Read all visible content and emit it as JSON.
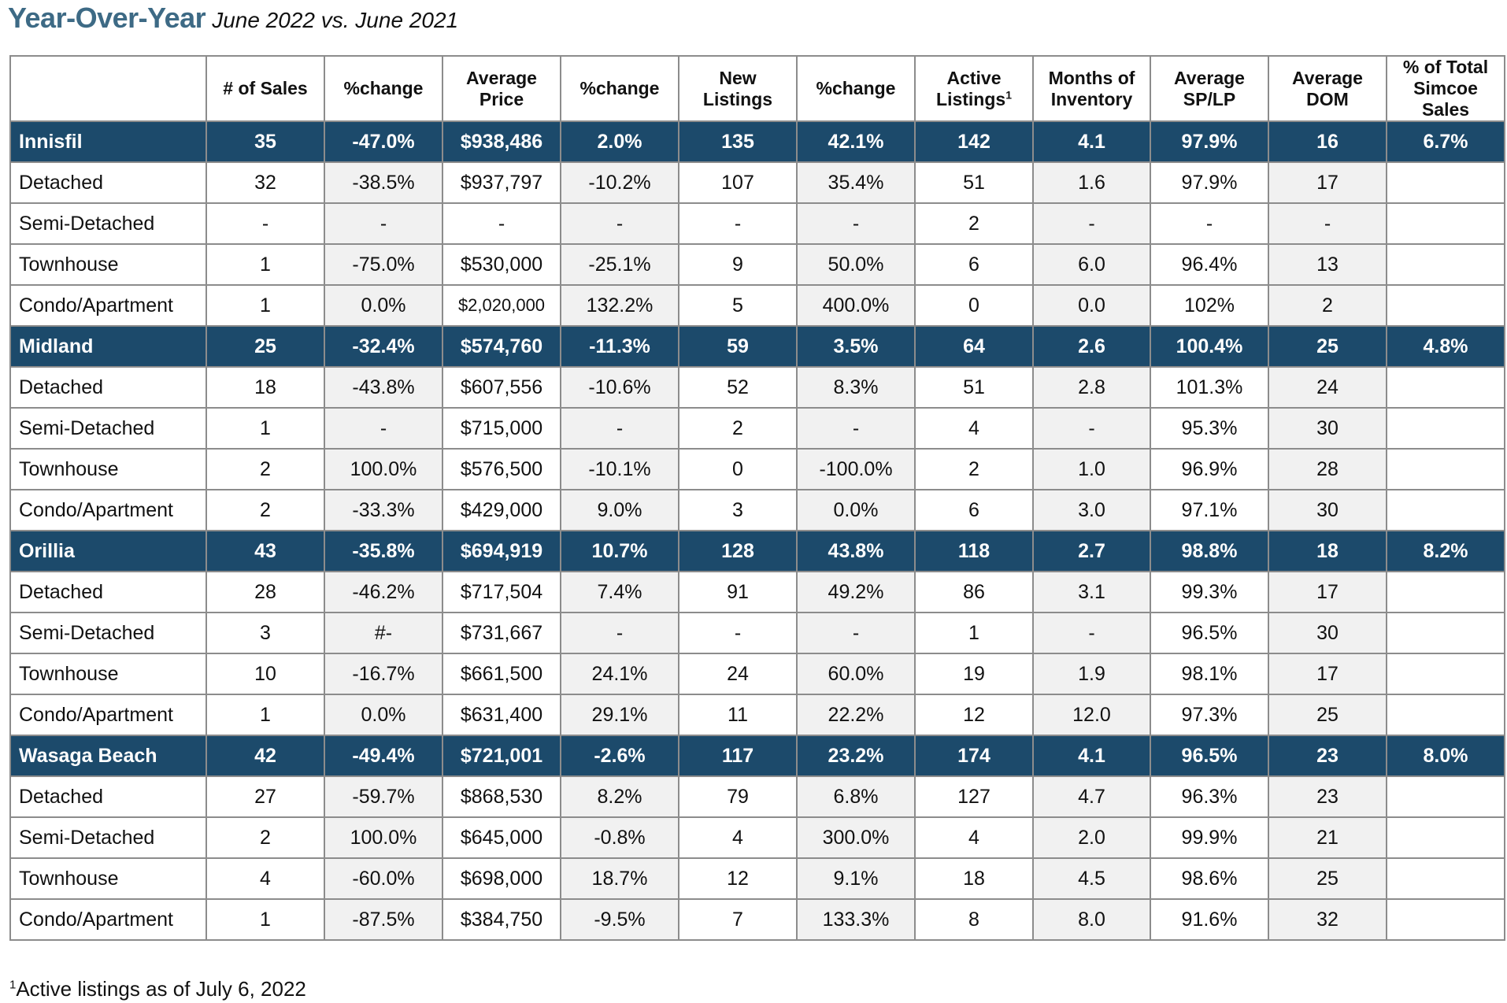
{
  "title": {
    "main": "Year-Over-Year",
    "sub": "June 2022 vs. June 2021"
  },
  "table": {
    "headers": [
      {
        "text": ""
      },
      {
        "text": "# of Sales"
      },
      {
        "text": "%change"
      },
      {
        "text": "Average Price"
      },
      {
        "text": "%change"
      },
      {
        "text": "New Listings"
      },
      {
        "text": "%change"
      },
      {
        "text": "Active Listings",
        "sup": "1"
      },
      {
        "text": "Months of Inventory"
      },
      {
        "text": "Average SP/LP"
      },
      {
        "text": "Average DOM"
      },
      {
        "text": "% of Total Simcoe Sales"
      }
    ],
    "rows": [
      {
        "kind": "group",
        "cells": [
          "Innisfil",
          "35",
          "-47.0%",
          "$938,486",
          "2.0%",
          "135",
          "42.1%",
          "142",
          "4.1",
          "97.9%",
          "16",
          "6.7%"
        ]
      },
      {
        "kind": "sub",
        "cells": [
          "Detached",
          "32",
          "-38.5%",
          "$937,797",
          "-10.2%",
          "107",
          "35.4%",
          "51",
          "1.6",
          "97.9%",
          "17",
          ""
        ]
      },
      {
        "kind": "sub",
        "cells": [
          "Semi-Detached",
          "-",
          "-",
          "-",
          "-",
          "-",
          "-",
          "2",
          "-",
          "-",
          "-",
          ""
        ]
      },
      {
        "kind": "sub",
        "cells": [
          "Townhouse",
          "1",
          "-75.0%",
          "$530,000",
          "-25.1%",
          "9",
          "50.0%",
          "6",
          "6.0",
          "96.4%",
          "13",
          ""
        ]
      },
      {
        "kind": "sub",
        "cells": [
          "Condo/Apartment",
          "1",
          "0.0%",
          "$2,020,000",
          "132.2%",
          "5",
          "400.0%",
          "0",
          "0.0",
          "102%",
          "2",
          ""
        ]
      },
      {
        "kind": "group",
        "cells": [
          "Midland",
          "25",
          "-32.4%",
          "$574,760",
          "-11.3%",
          "59",
          "3.5%",
          "64",
          "2.6",
          "100.4%",
          "25",
          "4.8%"
        ]
      },
      {
        "kind": "sub",
        "cells": [
          "Detached",
          "18",
          "-43.8%",
          "$607,556",
          "-10.6%",
          "52",
          "8.3%",
          "51",
          "2.8",
          "101.3%",
          "24",
          ""
        ]
      },
      {
        "kind": "sub",
        "cells": [
          "Semi-Detached",
          "1",
          "-",
          "$715,000",
          "-",
          "2",
          "-",
          "4",
          "-",
          "95.3%",
          "30",
          ""
        ]
      },
      {
        "kind": "sub",
        "cells": [
          "Townhouse",
          "2",
          "100.0%",
          "$576,500",
          "-10.1%",
          "0",
          "-100.0%",
          "2",
          "1.0",
          "96.9%",
          "28",
          ""
        ]
      },
      {
        "kind": "sub",
        "cells": [
          "Condo/Apartment",
          "2",
          "-33.3%",
          "$429,000",
          "9.0%",
          "3",
          "0.0%",
          "6",
          "3.0",
          "97.1%",
          "30",
          ""
        ]
      },
      {
        "kind": "group",
        "cells": [
          "Orillia",
          "43",
          "-35.8%",
          "$694,919",
          "10.7%",
          "128",
          "43.8%",
          "118",
          "2.7",
          "98.8%",
          "18",
          "8.2%"
        ]
      },
      {
        "kind": "sub",
        "cells": [
          "Detached",
          "28",
          "-46.2%",
          "$717,504",
          "7.4%",
          "91",
          "49.2%",
          "86",
          "3.1",
          "99.3%",
          "17",
          ""
        ]
      },
      {
        "kind": "sub",
        "cells": [
          "Semi-Detached",
          "3",
          "#-",
          "$731,667",
          "-",
          "-",
          "-",
          "1",
          "-",
          "96.5%",
          "30",
          ""
        ]
      },
      {
        "kind": "sub",
        "cells": [
          "Townhouse",
          "10",
          "-16.7%",
          "$661,500",
          "24.1%",
          "24",
          "60.0%",
          "19",
          "1.9",
          "98.1%",
          "17",
          ""
        ]
      },
      {
        "kind": "sub",
        "cells": [
          "Condo/Apartment",
          "1",
          "0.0%",
          "$631,400",
          "29.1%",
          "11",
          "22.2%",
          "12",
          "12.0",
          "97.3%",
          "25",
          ""
        ]
      },
      {
        "kind": "group",
        "cells": [
          "Wasaga Beach",
          "42",
          "-49.4%",
          "$721,001",
          "-2.6%",
          "117",
          "23.2%",
          "174",
          "4.1",
          "96.5%",
          "23",
          "8.0%"
        ]
      },
      {
        "kind": "sub",
        "cells": [
          "Detached",
          "27",
          "-59.7%",
          "$868,530",
          "8.2%",
          "79",
          "6.8%",
          "127",
          "4.7",
          "96.3%",
          "23",
          ""
        ]
      },
      {
        "kind": "sub",
        "cells": [
          "Semi-Detached",
          "2",
          "100.0%",
          "$645,000",
          "-0.8%",
          "4",
          "300.0%",
          "4",
          "2.0",
          "99.9%",
          "21",
          ""
        ]
      },
      {
        "kind": "sub",
        "cells": [
          "Townhouse",
          "4",
          "-60.0%",
          "$698,000",
          "18.7%",
          "12",
          "9.1%",
          "18",
          "4.5",
          "98.6%",
          "25",
          ""
        ]
      },
      {
        "kind": "sub",
        "cells": [
          "Condo/Apartment",
          "1",
          "-87.5%",
          "$384,750",
          "-9.5%",
          "7",
          "133.3%",
          "8",
          "8.0",
          "91.6%",
          "32",
          ""
        ]
      }
    ]
  },
  "footnote": {
    "sup": "1",
    "text": "Active listings as of July 6, 2022"
  },
  "colors": {
    "title": "#3d6a85",
    "group_row_bg": "#1c4a6b",
    "group_row_text": "#ffffff",
    "shaded_col_bg": "#f1f1f1",
    "border": "#8c8c8c"
  }
}
